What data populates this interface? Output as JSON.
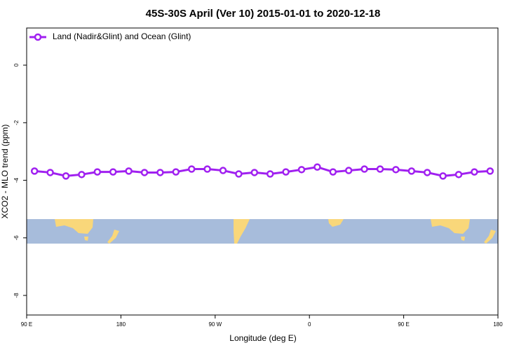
{
  "chart_data": {
    "type": "line",
    "title": "45S-30S April (Ver 10)   2015-01-01 to 2020-12-18",
    "x_label": "Longitude (deg E)",
    "y_label": "XCO2 - MLO trend (ppm)",
    "xlim": [
      90,
      540
    ],
    "xticks": [
      {
        "value": 90,
        "label": "90 E"
      },
      {
        "value": 180,
        "label": "180"
      },
      {
        "value": 270,
        "label": "90 W"
      },
      {
        "value": 360,
        "label": "0"
      },
      {
        "value": 450,
        "label": "90 E"
      },
      {
        "value": 540,
        "label": "180"
      }
    ],
    "ylim": [
      -8.68,
      1.29
    ],
    "yticks": [
      0,
      -2,
      -4,
      -6,
      -8
    ],
    "legend": "top-left",
    "x": [
      97.5,
      112.5,
      127.5,
      142.5,
      157.5,
      172.5,
      187.5,
      202.5,
      217.5,
      232.5,
      247.5,
      262.5,
      277.5,
      292.5,
      307.5,
      322.5,
      337.5,
      352.5,
      367.5,
      382.5,
      397.5,
      412.5,
      427.5,
      442.5,
      457.5,
      472.5,
      487.5,
      502.5,
      517.5,
      532.5
    ],
    "series": [
      {
        "name": "Land (Nadir&Glint) and Ocean (Glint)",
        "color": "#a020f0",
        "values": [
          -3.68,
          -3.73,
          -3.85,
          -3.8,
          -3.71,
          -3.71,
          -3.68,
          -3.73,
          -3.73,
          -3.71,
          -3.61,
          -3.61,
          -3.66,
          -3.78,
          -3.73,
          -3.78,
          -3.71,
          -3.63,
          -3.54,
          -3.71,
          -3.66,
          -3.61,
          -3.61,
          -3.63,
          -3.68,
          -3.73,
          -3.85,
          -3.8,
          -3.71,
          -3.68
        ]
      }
    ]
  }
}
